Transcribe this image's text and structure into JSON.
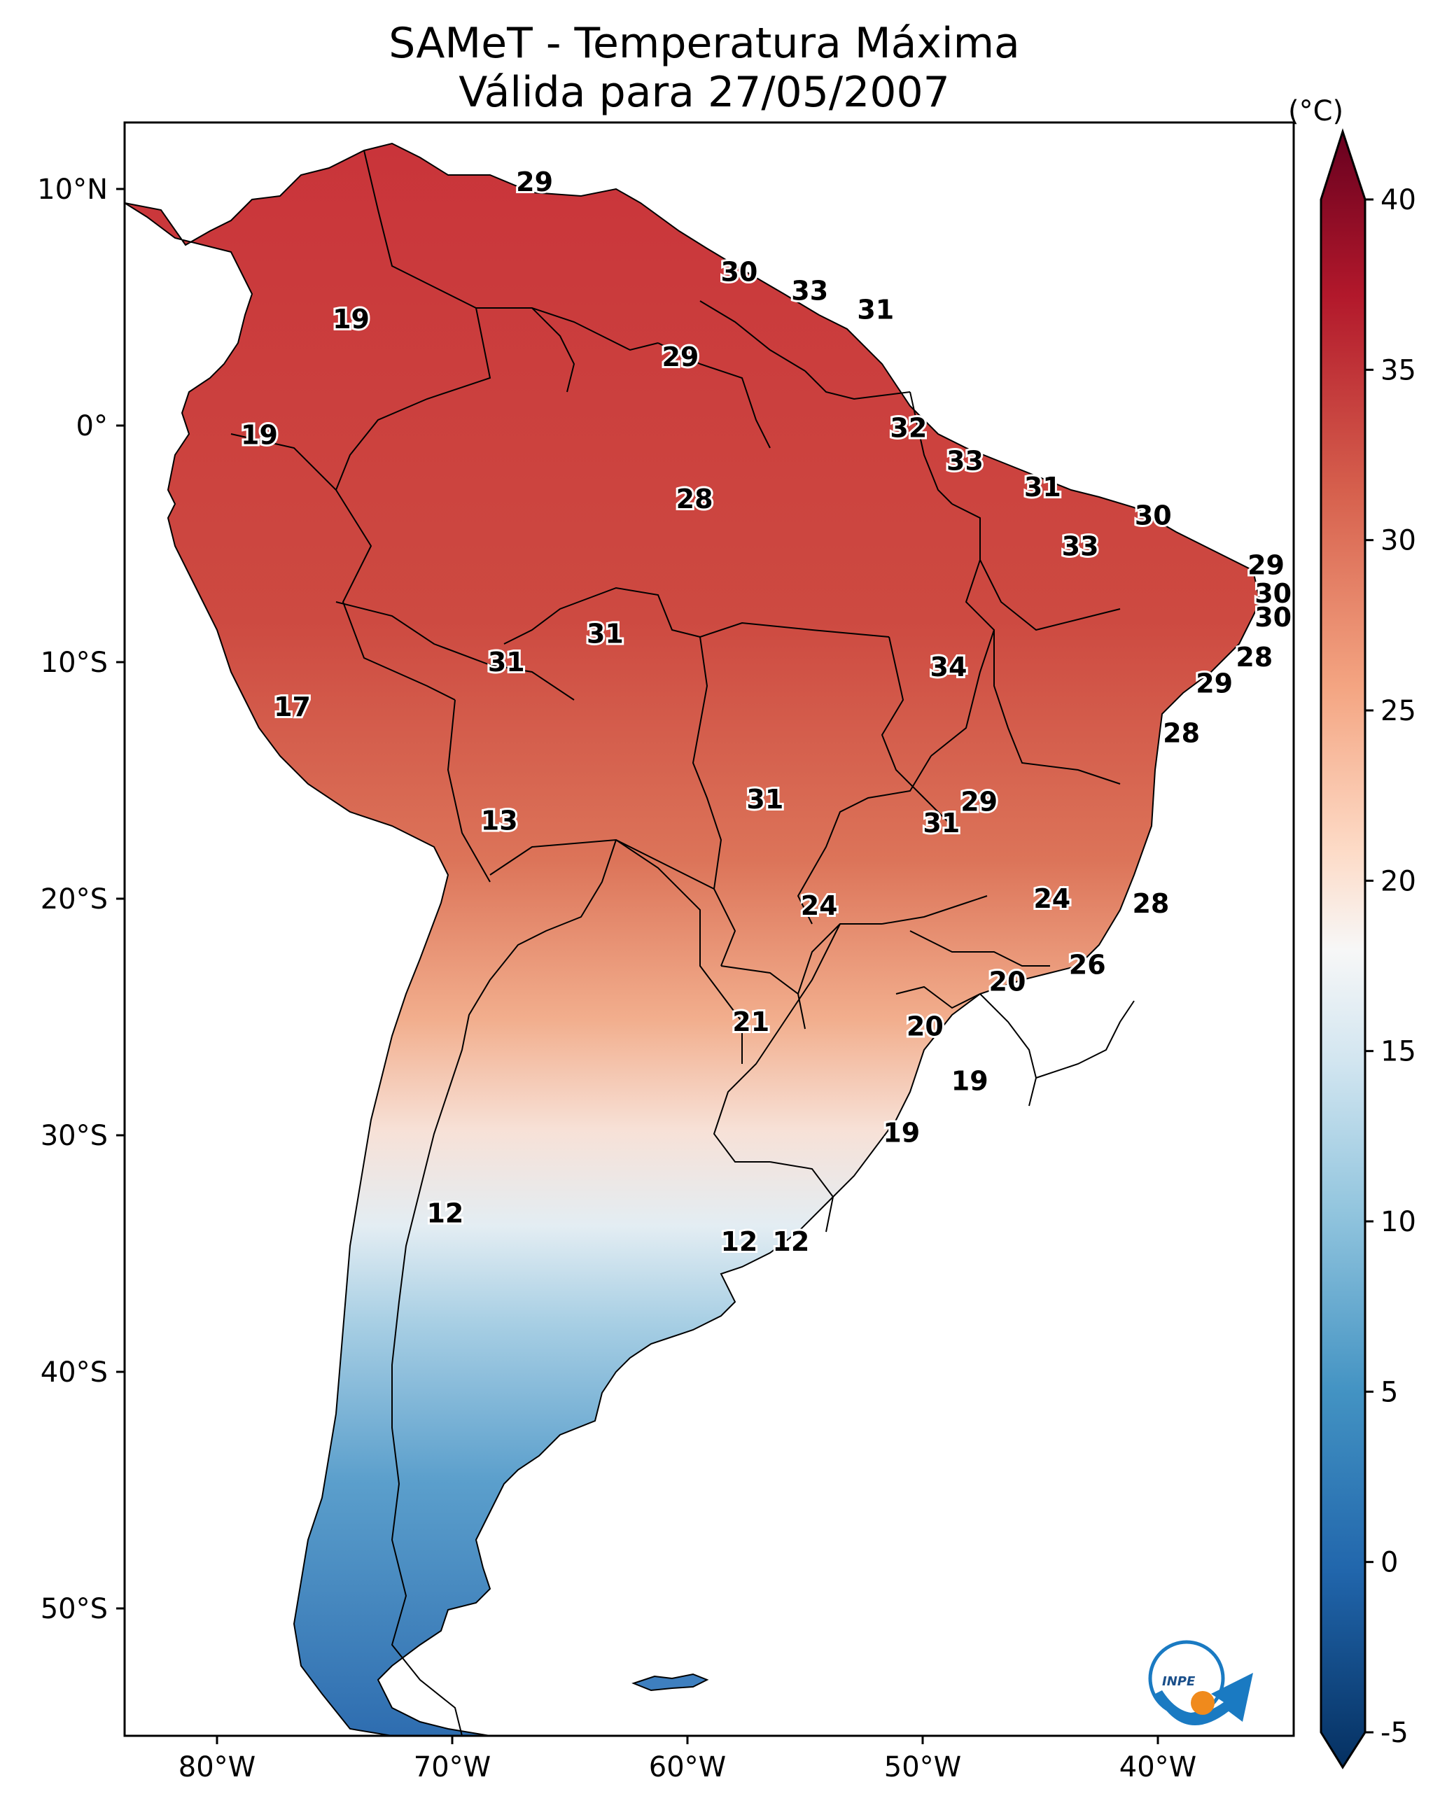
{
  "title": {
    "line1": "SAMeT - Temperatura Máxima",
    "line2": "Válida para 27/05/2007"
  },
  "colorbar": {
    "unit": "(°C)",
    "ticks": [
      "40",
      "35",
      "30",
      "25",
      "20",
      "15",
      "10",
      "5",
      "0",
      "-5"
    ],
    "range": [
      -5,
      40
    ],
    "colormap": [
      "#67001f",
      "#b2182b",
      "#d6604d",
      "#f4a582",
      "#fddbc7",
      "#f7f7f7",
      "#d1e5f0",
      "#92c5de",
      "#4393c3",
      "#2166ac",
      "#053061"
    ]
  },
  "axes": {
    "lat_ticks": [
      "10°N",
      "0°",
      "10°S",
      "20°S",
      "30°S",
      "40°S",
      "50°S"
    ],
    "lon_ticks": [
      "80°W",
      "70°W",
      "60°W",
      "50°W",
      "40°W"
    ]
  },
  "logo": {
    "text": "INPE",
    "icon": "inpe-logo-icon"
  },
  "temperature_labels": [
    {
      "v": "29",
      "lon": -66.5,
      "lat": 10.3
    },
    {
      "v": "19",
      "lon": -74.3,
      "lat": 4.5
    },
    {
      "v": "30",
      "lon": -57.8,
      "lat": 6.5
    },
    {
      "v": "33",
      "lon": -54.8,
      "lat": 5.7
    },
    {
      "v": "31",
      "lon": -52.0,
      "lat": 4.9
    },
    {
      "v": "29",
      "lon": -60.3,
      "lat": 2.9
    },
    {
      "v": "19",
      "lon": -78.2,
      "lat": -0.4
    },
    {
      "v": "32",
      "lon": -50.6,
      "lat": -0.1
    },
    {
      "v": "33",
      "lon": -48.2,
      "lat": -1.5
    },
    {
      "v": "28",
      "lon": -59.7,
      "lat": -3.1
    },
    {
      "v": "31",
      "lon": -44.9,
      "lat": -2.6
    },
    {
      "v": "30",
      "lon": -40.2,
      "lat": -3.8
    },
    {
      "v": "33",
      "lon": -43.3,
      "lat": -5.1
    },
    {
      "v": "29",
      "lon": -35.4,
      "lat": -5.9
    },
    {
      "v": "30",
      "lon": -35.1,
      "lat": -7.1
    },
    {
      "v": "30",
      "lon": -35.1,
      "lat": -8.1
    },
    {
      "v": "31",
      "lon": -63.5,
      "lat": -8.8
    },
    {
      "v": "31",
      "lon": -67.7,
      "lat": -10.0
    },
    {
      "v": "34",
      "lon": -48.9,
      "lat": -10.2
    },
    {
      "v": "28",
      "lon": -35.9,
      "lat": -9.8
    },
    {
      "v": "29",
      "lon": -37.6,
      "lat": -10.9
    },
    {
      "v": "17",
      "lon": -76.8,
      "lat": -11.9
    },
    {
      "v": "28",
      "lon": -39.0,
      "lat": -13.0
    },
    {
      "v": "13",
      "lon": -68.0,
      "lat": -16.7
    },
    {
      "v": "31",
      "lon": -56.7,
      "lat": -15.8
    },
    {
      "v": "29",
      "lon": -47.6,
      "lat": -15.9
    },
    {
      "v": "31",
      "lon": -49.2,
      "lat": -16.8
    },
    {
      "v": "24",
      "lon": -54.4,
      "lat": -20.3
    },
    {
      "v": "24",
      "lon": -44.5,
      "lat": -20.0
    },
    {
      "v": "28",
      "lon": -40.3,
      "lat": -20.2
    },
    {
      "v": "26",
      "lon": -43.0,
      "lat": -22.8
    },
    {
      "v": "20",
      "lon": -46.4,
      "lat": -23.5
    },
    {
      "v": "21",
      "lon": -57.3,
      "lat": -25.2
    },
    {
      "v": "20",
      "lon": -49.9,
      "lat": -25.4
    },
    {
      "v": "19",
      "lon": -48.0,
      "lat": -27.7
    },
    {
      "v": "19",
      "lon": -50.9,
      "lat": -29.9
    },
    {
      "v": "12",
      "lon": -70.3,
      "lat": -33.3
    },
    {
      "v": "12",
      "lon": -57.8,
      "lat": -34.5
    },
    {
      "v": "12",
      "lon": -55.6,
      "lat": -34.5
    }
  ]
}
